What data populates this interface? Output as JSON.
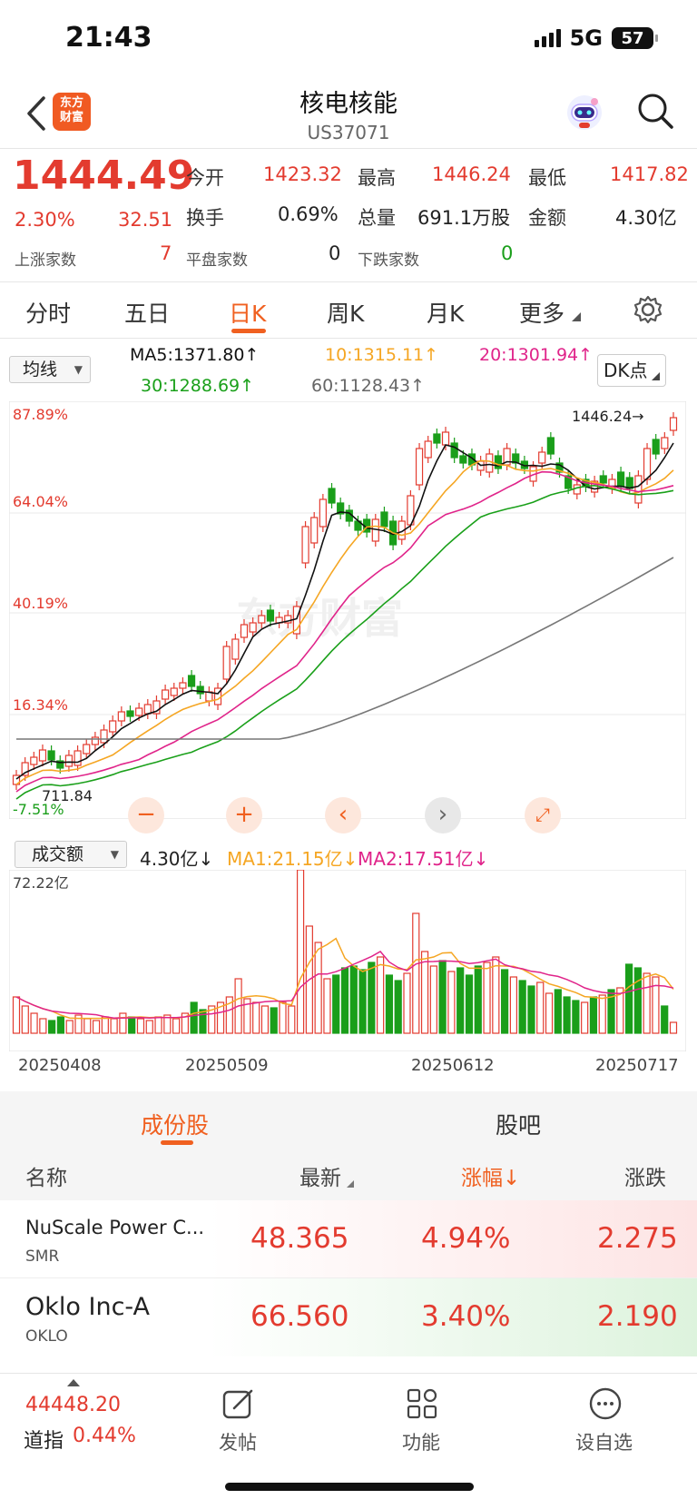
{
  "status": {
    "time": "21:43",
    "network": "5G",
    "battery": "57"
  },
  "header": {
    "logo_line1": "东方",
    "logo_line2": "财富",
    "title": "核电核能",
    "code": "US37071"
  },
  "quote": {
    "price": "1444.49",
    "change_pct": "2.30%",
    "change": "32.51",
    "open_label": "今开",
    "open": "1423.32",
    "high_label": "最高",
    "high": "1446.24",
    "low_label": "最低",
    "low": "1417.82",
    "turnover_label": "换手",
    "turnover": "0.69%",
    "volume_label": "总量",
    "volume": "691.1万股",
    "amount_label": "金额",
    "amount": "4.30亿",
    "up_label": "上涨家数",
    "up": "7",
    "flat_label": "平盘家数",
    "flat": "0",
    "down_label": "下跌家数",
    "down": "0"
  },
  "tabs": [
    "分时",
    "五日",
    "日K",
    "周K",
    "月K",
    "更多"
  ],
  "ma_bar": {
    "select": "均线",
    "ma5": "MA5:1371.80↑",
    "ma10": "10:1315.11↑",
    "ma20": "20:1301.94↑",
    "ma30": "30:1288.69↑",
    "ma60": "60:1128.43↑",
    "dk": "DK点"
  },
  "chart_labels": {
    "y_top": "87.89%",
    "y2": "64.04%",
    "y3": "40.19%",
    "y4": "16.34%",
    "y_bottom": "-7.51%",
    "max_label": "1446.24→",
    "min_label": "711.84",
    "watermark": "东方财富"
  },
  "volume_bar": {
    "select": "成交额",
    "value": "4.30亿↓",
    "ma1": "MA1:21.15亿↓",
    "ma2": "MA2:17.51亿↓",
    "y_max": "72.22亿"
  },
  "dates": [
    "20250408",
    "20250509",
    "20250612",
    "20250717"
  ],
  "colors": {
    "up": "#e33b2f",
    "down": "#1a9e1a",
    "ma5": "#111111",
    "ma10": "#f5a623",
    "ma20": "#e0248a",
    "ma30": "#1aa01a",
    "ma60": "#777777",
    "accent": "#f06020"
  },
  "constituents": {
    "tab1": "成份股",
    "tab2": "股吧",
    "headers": {
      "name": "名称",
      "last": "最新",
      "pct": "涨幅↓",
      "chg": "涨跌"
    },
    "rows": [
      {
        "name": "NuScale Power C...",
        "code": "SMR",
        "last": "48.365",
        "pct": "4.94%",
        "chg": "2.275"
      },
      {
        "name": "Oklo Inc-A",
        "code": "OKLO",
        "last": "66.560",
        "pct": "3.40%",
        "chg": "2.190"
      }
    ]
  },
  "bottom": {
    "index_value": "44448.20",
    "index_name": "道指",
    "index_pct": "0.44%",
    "post": "发帖",
    "func": "功能",
    "watch": "设自选"
  }
}
